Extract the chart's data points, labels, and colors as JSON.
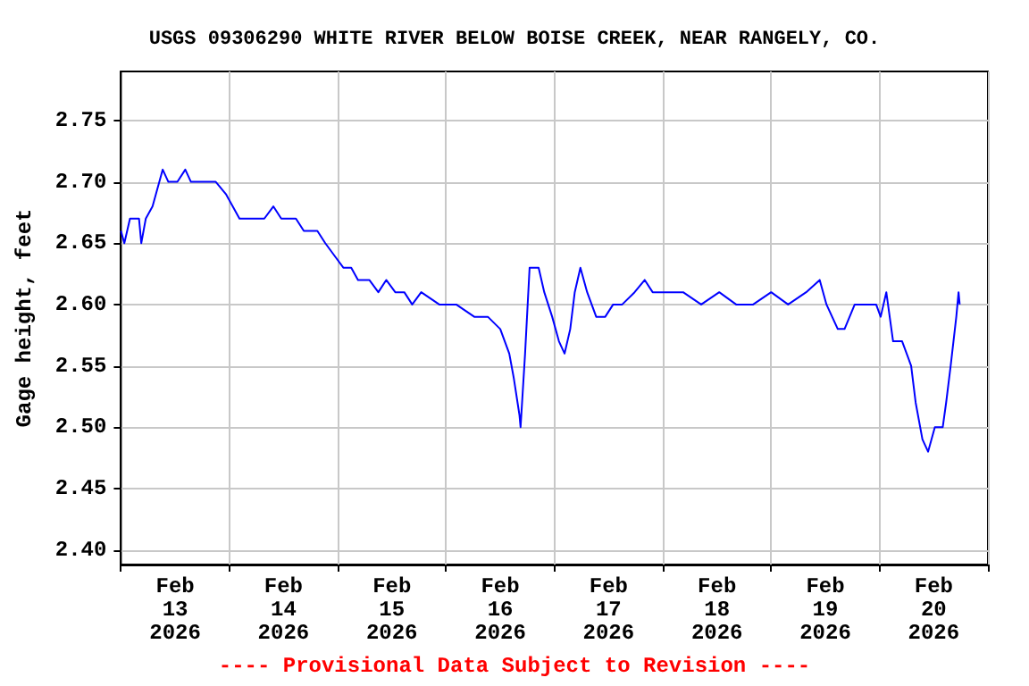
{
  "chart_data": {
    "type": "line",
    "title": "USGS 09306290 WHITE RIVER BELOW BOISE CREEK, NEAR RANGELY, CO.",
    "ylabel": "Gage height, feet",
    "annotations": [
      "---- Provisional Data Subject to Revision ----"
    ],
    "x": [
      "2026-02-13T00:00",
      "2026-02-13T00:45",
      "2026-02-13T02:00",
      "2026-02-13T04:00",
      "2026-02-13T04:30",
      "2026-02-13T05:30",
      "2026-02-13T07:00",
      "2026-02-13T08:30",
      "2026-02-13T09:15",
      "2026-02-13T10:30",
      "2026-02-13T12:30",
      "2026-02-13T14:15",
      "2026-02-13T15:30",
      "2026-02-13T18:15",
      "2026-02-13T21:00",
      "2026-02-13T23:15",
      "2026-02-14T00:45",
      "2026-02-14T02:15",
      "2026-02-14T04:00",
      "2026-02-14T07:45",
      "2026-02-14T09:45",
      "2026-02-14T11:30",
      "2026-02-14T14:45",
      "2026-02-14T16:30",
      "2026-02-14T19:30",
      "2026-02-14T21:15",
      "2026-02-14T23:15",
      "2026-02-15T01:15",
      "2026-02-15T03:00",
      "2026-02-15T04:30",
      "2026-02-15T07:00",
      "2026-02-15T09:00",
      "2026-02-15T10:45",
      "2026-02-15T12:45",
      "2026-02-15T14:45",
      "2026-02-15T16:30",
      "2026-02-15T18:30",
      "2026-02-15T22:30",
      "2026-02-16T02:15",
      "2026-02-16T06:15",
      "2026-02-16T09:15",
      "2026-02-16T12:00",
      "2026-02-16T14:00",
      "2026-02-16T15:00",
      "2026-02-16T16:15",
      "2026-02-16T16:30",
      "2026-02-16T17:30",
      "2026-02-16T18:30",
      "2026-02-16T20:30",
      "2026-02-16T21:45",
      "2026-02-16T23:30",
      "2026-02-17T01:00",
      "2026-02-17T02:15",
      "2026-02-17T03:30",
      "2026-02-17T04:30",
      "2026-02-17T05:45",
      "2026-02-17T07:15",
      "2026-02-17T09:15",
      "2026-02-17T11:15",
      "2026-02-17T13:00",
      "2026-02-17T15:00",
      "2026-02-17T17:45",
      "2026-02-17T20:00",
      "2026-02-17T21:45",
      "2026-02-18T00:45",
      "2026-02-18T04:30",
      "2026-02-18T08:30",
      "2026-02-18T12:30",
      "2026-02-18T16:15",
      "2026-02-18T20:00",
      "2026-02-19T00:00",
      "2026-02-19T03:45",
      "2026-02-19T07:45",
      "2026-02-19T10:45",
      "2026-02-19T12:15",
      "2026-02-19T14:45",
      "2026-02-19T16:15",
      "2026-02-19T18:30",
      "2026-02-19T21:15",
      "2026-02-19T23:15",
      "2026-02-20T00:15",
      "2026-02-20T01:30",
      "2026-02-20T03:00",
      "2026-02-20T05:00",
      "2026-02-20T07:00",
      "2026-02-20T08:00",
      "2026-02-20T09:30",
      "2026-02-20T10:45",
      "2026-02-20T12:15",
      "2026-02-20T14:00",
      "2026-02-20T14:45",
      "2026-02-20T15:45",
      "2026-02-20T17:00",
      "2026-02-20T17:30",
      "2026-02-20T17:45"
    ],
    "series": [
      {
        "color": "#0000ff",
        "values": [
          2.66,
          2.65,
          2.67,
          2.67,
          2.65,
          2.67,
          2.68,
          2.7,
          2.71,
          2.7,
          2.7,
          2.71,
          2.7,
          2.7,
          2.7,
          2.69,
          2.68,
          2.67,
          2.67,
          2.67,
          2.68,
          2.67,
          2.67,
          2.66,
          2.66,
          2.65,
          2.64,
          2.63,
          2.63,
          2.62,
          2.62,
          2.61,
          2.62,
          2.61,
          2.61,
          2.6,
          2.61,
          2.6,
          2.6,
          2.59,
          2.59,
          2.58,
          2.56,
          2.54,
          2.51,
          2.5,
          2.56,
          2.63,
          2.63,
          2.61,
          2.59,
          2.57,
          2.56,
          2.58,
          2.61,
          2.63,
          2.61,
          2.59,
          2.59,
          2.6,
          2.6,
          2.61,
          2.62,
          2.61,
          2.61,
          2.61,
          2.6,
          2.61,
          2.6,
          2.6,
          2.61,
          2.6,
          2.61,
          2.62,
          2.6,
          2.58,
          2.58,
          2.6,
          2.6,
          2.6,
          2.59,
          2.61,
          2.57,
          2.57,
          2.55,
          2.52,
          2.49,
          2.48,
          2.5,
          2.5,
          2.52,
          2.55,
          2.59,
          2.61,
          2.6
        ]
      }
    ],
    "xlim": [
      "2026-02-13T00:00",
      "2026-02-21T00:00"
    ],
    "xticks": [
      {
        "value": "2026-02-13T00:00",
        "label": null
      },
      {
        "value": "2026-02-13T12:00",
        "label": "Feb\n13\n2026"
      },
      {
        "value": "2026-02-14T00:00",
        "label": null
      },
      {
        "value": "2026-02-14T12:00",
        "label": "Feb\n14\n2026"
      },
      {
        "value": "2026-02-15T00:00",
        "label": null
      },
      {
        "value": "2026-02-15T12:00",
        "label": "Feb\n15\n2026"
      },
      {
        "value": "2026-02-16T00:00",
        "label": null
      },
      {
        "value": "2026-02-16T12:00",
        "label": "Feb\n16\n2026"
      },
      {
        "value": "2026-02-17T00:00",
        "label": null
      },
      {
        "value": "2026-02-17T12:00",
        "label": "Feb\n17\n2026"
      },
      {
        "value": "2026-02-18T00:00",
        "label": null
      },
      {
        "value": "2026-02-18T12:00",
        "label": "Feb\n18\n2026"
      },
      {
        "value": "2026-02-19T00:00",
        "label": null
      },
      {
        "value": "2026-02-19T12:00",
        "label": "Feb\n19\n2026"
      },
      {
        "value": "2026-02-20T00:00",
        "label": null
      },
      {
        "value": "2026-02-20T12:00",
        "label": "Feb\n20\n2026"
      },
      {
        "value": "2026-02-21T00:00",
        "label": null
      }
    ],
    "ylim": [
      2.388,
      2.79
    ],
    "yticks": [
      {
        "value": 2.4,
        "label": "2.40"
      },
      {
        "value": 2.45,
        "label": "2.45"
      },
      {
        "value": 2.5,
        "label": "2.50"
      },
      {
        "value": 2.55,
        "label": "2.55"
      },
      {
        "value": 2.6,
        "label": "2.60"
      },
      {
        "value": 2.65,
        "label": "2.65"
      },
      {
        "value": 2.7,
        "label": "2.70"
      },
      {
        "value": 2.75,
        "label": "2.75"
      }
    ],
    "grid": true,
    "legend": false,
    "marker": "none",
    "line_style": "solid"
  }
}
